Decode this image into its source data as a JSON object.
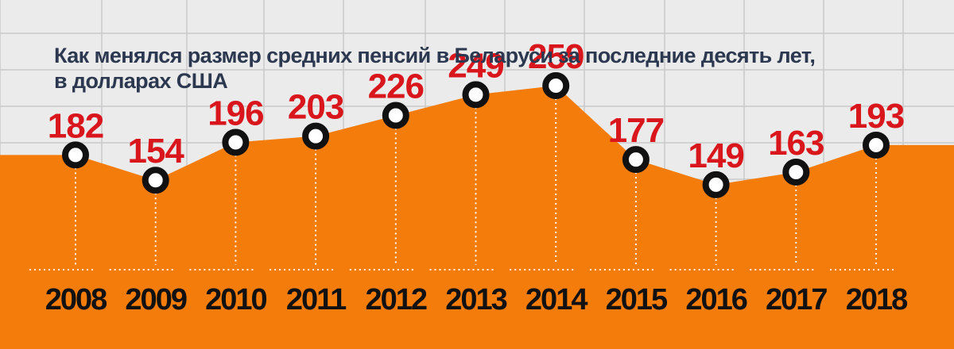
{
  "title_line1": "Как менялся размер средних пенсий в Беларуси за последние десять лет,",
  "title_line2": "в долларах США",
  "colors": {
    "background": "#ebebeb",
    "grid": "#c9c9c9",
    "area": "#f47c0a",
    "value_label": "#d9161c",
    "year_label": "#111111",
    "title": "#2b3850"
  },
  "chart_data": {
    "type": "area",
    "categories": [
      "2008",
      "2009",
      "2010",
      "2011",
      "2012",
      "2013",
      "2014",
      "2015",
      "2016",
      "2017",
      "2018"
    ],
    "values": [
      182,
      154,
      196,
      203,
      226,
      249,
      259,
      177,
      149,
      163,
      193
    ],
    "data_labels": [
      "182",
      "154",
      "196",
      "203",
      "226",
      "249",
      "259",
      "177",
      "149",
      "163",
      "193"
    ],
    "grid": true,
    "legend": "none"
  }
}
